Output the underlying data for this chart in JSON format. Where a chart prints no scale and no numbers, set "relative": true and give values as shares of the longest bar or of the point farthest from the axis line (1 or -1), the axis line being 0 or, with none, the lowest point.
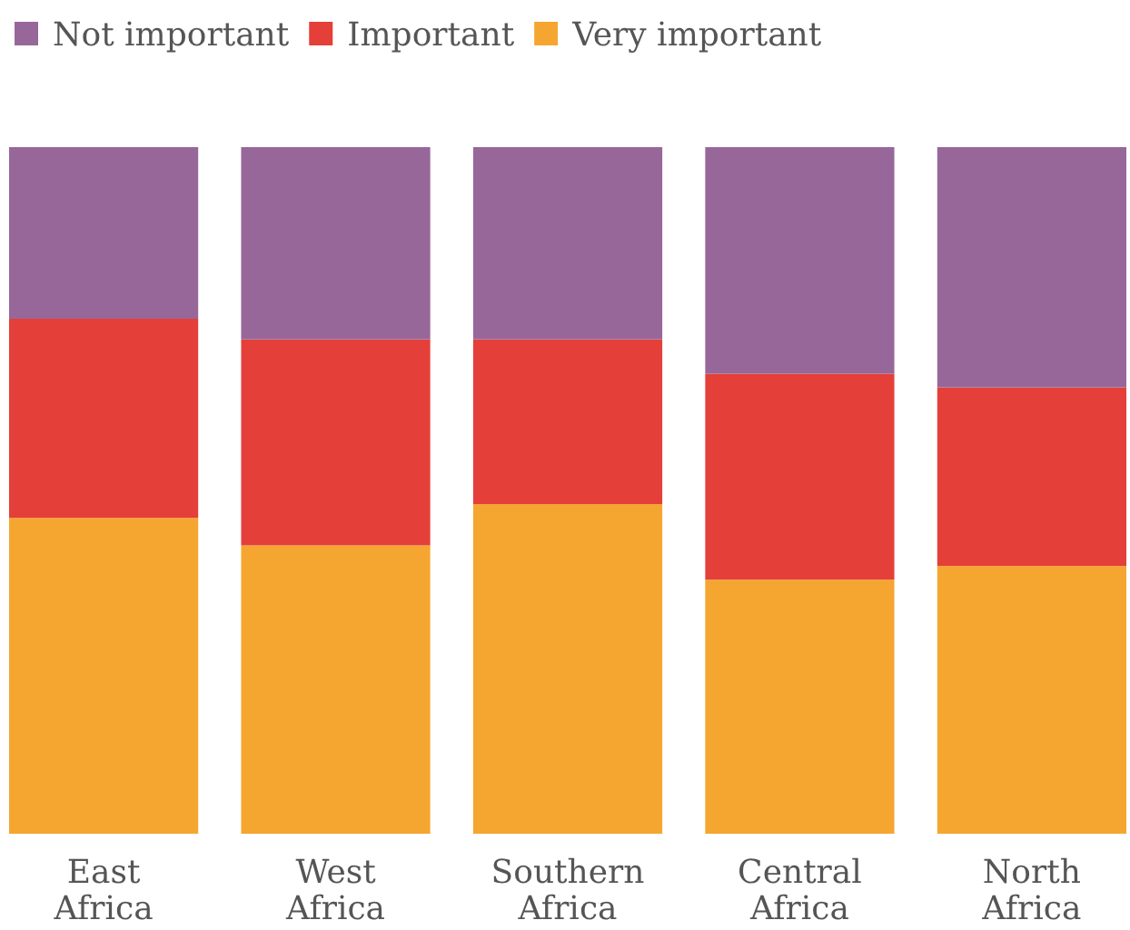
{
  "chart_data": {
    "type": "bar",
    "stacked": true,
    "relative": true,
    "legend": "top left",
    "categories": [
      "East Africa",
      "West Africa",
      "Southern Africa",
      "Central Africa",
      "North Africa"
    ],
    "series": [
      {
        "name": "Very important",
        "color": "#f5a631",
        "values": [
          0.46,
          0.42,
          0.48,
          0.37,
          0.39
        ]
      },
      {
        "name": "Important",
        "color": "#e53f39",
        "values": [
          0.29,
          0.3,
          0.24,
          0.3,
          0.26
        ]
      },
      {
        "name": "Not important",
        "color": "#98679a",
        "values": [
          0.25,
          0.28,
          0.28,
          0.33,
          0.35
        ]
      }
    ]
  }
}
